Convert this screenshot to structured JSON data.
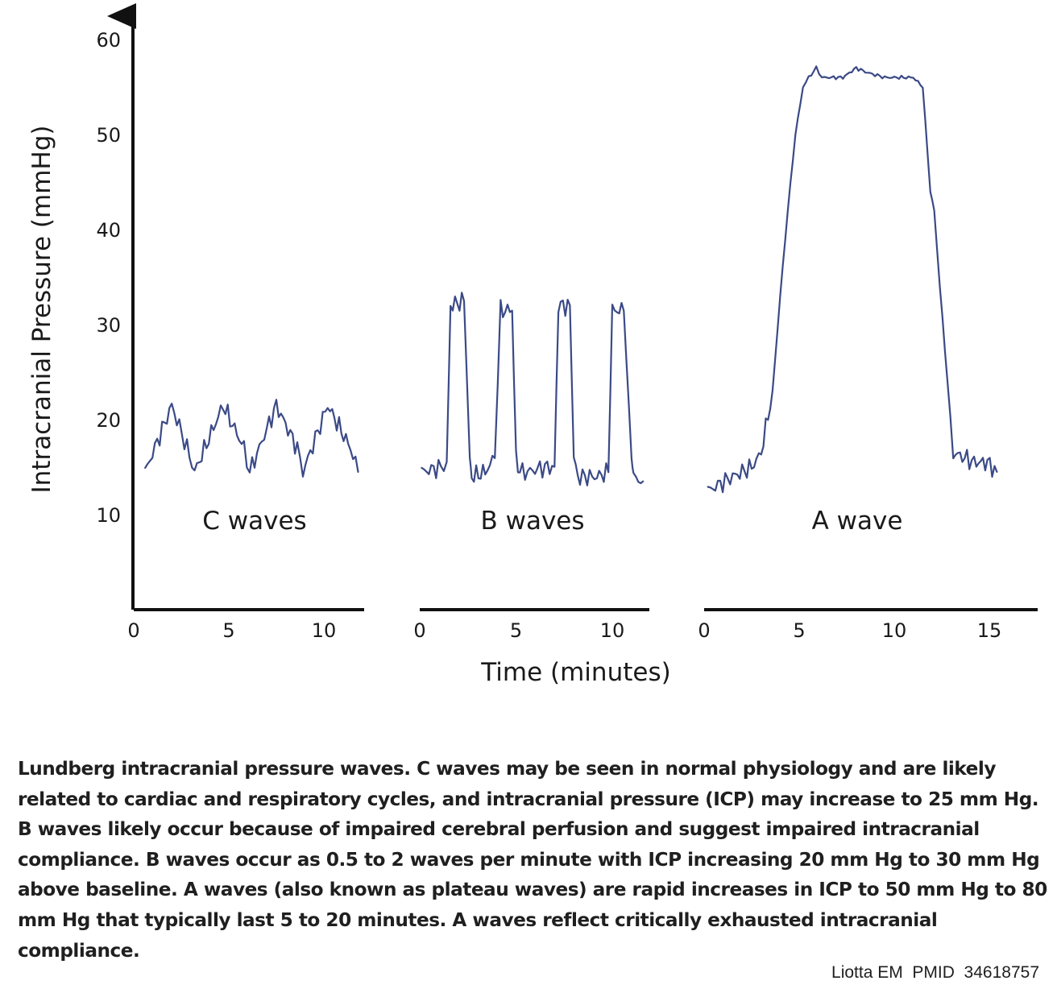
{
  "chart_data": {
    "type": "line",
    "ylabel": "Intracranial Pressure (mmHg)",
    "xlabel": "Time (minutes)",
    "y_ticks": [
      "10",
      "20",
      "30",
      "40",
      "50",
      "60"
    ],
    "ylim": [
      0,
      62
    ],
    "panels": [
      {
        "label": "C waves",
        "x_ticks": [
          "0",
          "5",
          "10"
        ],
        "xlim": [
          0,
          12
        ],
        "series": [
          {
            "x": [
              0.6,
              2.0,
              2.8,
              3.2,
              4.7,
              5.8,
              6.1,
              7.5,
              8.6,
              8.9,
              10.2,
              11.4,
              11.8
            ],
            "y": [
              14.5,
              21.5,
              17.0,
              14.5,
              21.5,
              17.0,
              14.5,
              21.5,
              17.0,
              14.5,
              21.5,
              17.0,
              14.5
            ]
          }
        ]
      },
      {
        "label": "B waves",
        "x_ticks": [
          "0",
          "5",
          "10"
        ],
        "xlim": [
          0,
          12
        ],
        "series": [
          {
            "x": [
              0.1,
              1.1,
              1.4,
              1.6,
              2.3,
              2.6,
              2.7,
              3.4,
              3.9,
              4.2,
              4.8,
              5.0,
              5.2,
              5.6,
              6.5,
              7.0,
              7.2,
              7.8,
              8.0,
              8.2,
              9.2,
              9.8,
              10.0,
              10.6,
              11.0,
              11.1,
              11.6
            ],
            "y": [
              14.5,
              15.0,
              15.5,
              32.0,
              32.5,
              16.0,
              14.0,
              14.5,
              16.0,
              31.5,
              31.5,
              16.0,
              14.5,
              14.5,
              15.0,
              15.0,
              32.0,
              32.0,
              16.0,
              14.0,
              14.0,
              14.5,
              31.5,
              31.5,
              16.0,
              14.0,
              13.5
            ]
          }
        ]
      },
      {
        "label": "A wave",
        "x_ticks": [
          "0",
          "5",
          "10",
          "15"
        ],
        "xlim": [
          0,
          17
        ],
        "series": [
          {
            "x": [
              0.2,
              1.5,
              2.5,
              3.0,
              3.6,
              4.0,
              4.4,
              4.8,
              5.2,
              5.5,
              5.9,
              6.2,
              7.3,
              8.0,
              8.6,
              9.5,
              11.0,
              11.5,
              11.9,
              12.1,
              12.4,
              12.8,
              13.1,
              13.7,
              14.2,
              14.9,
              15.4
            ],
            "y": [
              12.5,
              14.0,
              15.0,
              16.5,
              23.0,
              33.0,
              42.0,
              50.0,
              55.0,
              56.0,
              57.0,
              56.0,
              56.0,
              57.0,
              56.5,
              56.0,
              56.0,
              55.0,
              44.0,
              42.0,
              34.0,
              24.0,
              16.5,
              16.0,
              15.5,
              15.5,
              14.5
            ]
          }
        ]
      }
    ]
  },
  "caption": "Lundberg intracranial pressure waves. C waves may be seen in normal physiology and are likely related to cardiac and respiratory cycles, and intracranial pressure (ICP) may increase to 25 mm Hg. B waves likely occur because of impaired cerebral perfusion and suggest impaired intracranial compliance. B waves occur as 0.5 to 2 waves per minute with ICP increasing 20 mm Hg to 30 mm Hg above baseline. A waves (also known as plateau waves) are rapid increases in ICP to 50 mm Hg to 80 mm Hg that typically last 5 to 20 minutes. A waves reflect critically exhausted intracranial compliance.",
  "credit": "Liotta EM  PMID  34618757",
  "colors": {
    "line": "#3b4a86",
    "axis": "#111111"
  }
}
